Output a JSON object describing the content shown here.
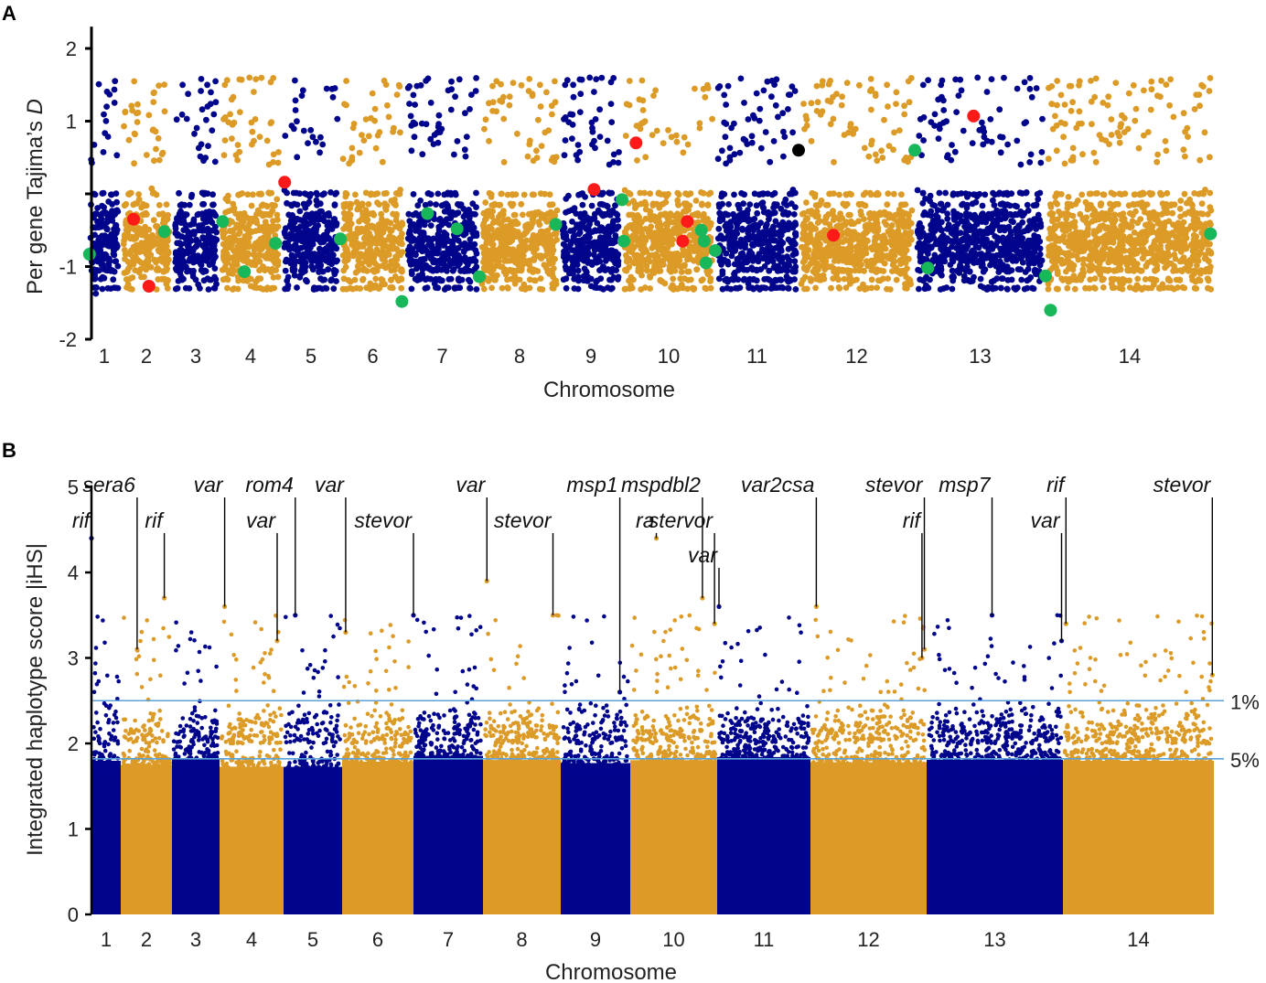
{
  "colors": {
    "navy": "#00058c",
    "gold": "#dc9a27",
    "red": "#ff1a1a",
    "green": "#18b75a",
    "black": "#000000",
    "threshold": "#5ba3dc"
  },
  "chart_data": [
    {
      "panel": "A",
      "type": "scatter",
      "title": "",
      "xlabel": "Chromosome",
      "ylabel_prefix": "Per gene Tajima’s ",
      "ylabel_italic": "D",
      "ylim": [
        -2,
        2.3
      ],
      "yticks": [
        2,
        1,
        0,
        -1,
        -2
      ],
      "ytick_labels": [
        "2",
        "1",
        "",
        "-1",
        "-2"
      ],
      "chromosomes": [
        {
          "label": "1",
          "color": "navy"
        },
        {
          "label": "2",
          "color": "gold"
        },
        {
          "label": "3",
          "color": "navy"
        },
        {
          "label": "4",
          "color": "gold"
        },
        {
          "label": "5",
          "color": "navy"
        },
        {
          "label": "6",
          "color": "gold"
        },
        {
          "label": "7",
          "color": "navy"
        },
        {
          "label": "8",
          "color": "gold"
        },
        {
          "label": "9",
          "color": "navy"
        },
        {
          "label": "10",
          "color": "gold"
        },
        {
          "label": "11",
          "color": "navy"
        },
        {
          "label": "12",
          "color": "gold"
        },
        {
          "label": "13",
          "color": "navy"
        },
        {
          "label": "14",
          "color": "gold"
        }
      ],
      "highlight_points": [
        {
          "chrom": 2,
          "pos": 0.25,
          "value": -0.35,
          "color": "red"
        },
        {
          "chrom": 2,
          "pos": 0.55,
          "value": -1.27,
          "color": "red"
        },
        {
          "chrom": 5,
          "pos": 0.05,
          "value": 0.16,
          "color": "red"
        },
        {
          "chrom": 9,
          "pos": 0.55,
          "value": 0.06,
          "color": "red"
        },
        {
          "chrom": 10,
          "pos": 0.15,
          "value": 0.7,
          "color": "red"
        },
        {
          "chrom": 10,
          "pos": 0.7,
          "value": -0.38,
          "color": "red"
        },
        {
          "chrom": 10,
          "pos": 0.65,
          "value": -0.65,
          "color": "red"
        },
        {
          "chrom": 12,
          "pos": 0.3,
          "value": -0.57,
          "color": "red"
        },
        {
          "chrom": 13,
          "pos": 0.45,
          "value": 1.07,
          "color": "red"
        },
        {
          "chrom": 12,
          "pos": 0.0,
          "value": 0.6,
          "color": "black"
        },
        {
          "chrom": 1,
          "pos": 0.05,
          "value": -0.83,
          "color": "green"
        },
        {
          "chrom": 2,
          "pos": 0.85,
          "value": -0.52,
          "color": "green"
        },
        {
          "chrom": 4,
          "pos": 0.05,
          "value": -0.38,
          "color": "green"
        },
        {
          "chrom": 4,
          "pos": 0.4,
          "value": -1.07,
          "color": "green"
        },
        {
          "chrom": 4,
          "pos": 0.9,
          "value": -0.68,
          "color": "green"
        },
        {
          "chrom": 6,
          "pos": 0.0,
          "value": -0.62,
          "color": "green"
        },
        {
          "chrom": 6,
          "pos": 0.95,
          "value": -1.48,
          "color": "green"
        },
        {
          "chrom": 7,
          "pos": 0.3,
          "value": -0.27,
          "color": "green"
        },
        {
          "chrom": 7,
          "pos": 0.7,
          "value": -0.48,
          "color": "green"
        },
        {
          "chrom": 8,
          "pos": 0.0,
          "value": -1.14,
          "color": "green"
        },
        {
          "chrom": 8,
          "pos": 0.95,
          "value": -0.42,
          "color": "green"
        },
        {
          "chrom": 10,
          "pos": 0.0,
          "value": -0.08,
          "color": "green"
        },
        {
          "chrom": 10,
          "pos": 0.02,
          "value": -0.65,
          "color": "green"
        },
        {
          "chrom": 10,
          "pos": 0.85,
          "value": -0.5,
          "color": "green"
        },
        {
          "chrom": 10,
          "pos": 0.88,
          "value": -0.65,
          "color": "green"
        },
        {
          "chrom": 10,
          "pos": 0.9,
          "value": -0.95,
          "color": "green"
        },
        {
          "chrom": 11,
          "pos": 0.0,
          "value": -0.78,
          "color": "green"
        },
        {
          "chrom": 13,
          "pos": 0.0,
          "value": 0.6,
          "color": "green"
        },
        {
          "chrom": 13,
          "pos": 0.1,
          "value": -1.02,
          "color": "green"
        },
        {
          "chrom": 14,
          "pos": 0.0,
          "value": -1.13,
          "color": "green"
        },
        {
          "chrom": 14,
          "pos": 0.03,
          "value": -1.6,
          "color": "green"
        },
        {
          "chrom": 14,
          "pos": 0.98,
          "value": -0.55,
          "color": "green"
        }
      ]
    },
    {
      "panel": "B",
      "type": "scatter",
      "title": "",
      "xlabel": "Chromosome",
      "ylabel": "Integrated haplotype score |iHS|",
      "ylim": [
        0,
        5
      ],
      "yticks": [
        0,
        1,
        2,
        3,
        4,
        5
      ],
      "ytick_labels": [
        "0",
        "1",
        "2",
        "3",
        "4",
        "5"
      ],
      "thresholds": [
        {
          "label": "1%",
          "value": 2.5
        },
        {
          "label": "5%",
          "value": 1.82
        }
      ],
      "chromosomes": [
        {
          "label": "1",
          "color": "navy"
        },
        {
          "label": "2",
          "color": "gold"
        },
        {
          "label": "3",
          "color": "navy"
        },
        {
          "label": "4",
          "color": "gold"
        },
        {
          "label": "5",
          "color": "navy"
        },
        {
          "label": "6",
          "color": "gold"
        },
        {
          "label": "7",
          "color": "navy"
        },
        {
          "label": "8",
          "color": "gold"
        },
        {
          "label": "9",
          "color": "navy"
        },
        {
          "label": "10",
          "color": "gold"
        },
        {
          "label": "11",
          "color": "navy"
        },
        {
          "label": "12",
          "color": "gold"
        },
        {
          "label": "13",
          "color": "navy"
        },
        {
          "label": "14",
          "color": "gold"
        }
      ],
      "gene_annotations": [
        {
          "label": "rif",
          "chrom": 1,
          "pos": 0.0,
          "peak": 4.4,
          "row": 2
        },
        {
          "label": "sera6",
          "chrom": 2,
          "pos": 0.32,
          "peak": 3.1,
          "row": 1
        },
        {
          "label": "rif",
          "chrom": 2,
          "pos": 0.85,
          "peak": 3.7,
          "row": 2
        },
        {
          "label": "var",
          "chrom": 4,
          "pos": 0.08,
          "peak": 3.6,
          "row": 1
        },
        {
          "label": "var",
          "chrom": 4,
          "pos": 0.9,
          "peak": 3.2,
          "row": 2
        },
        {
          "label": "rom4",
          "chrom": 5,
          "pos": 0.2,
          "peak": 3.5,
          "row": 1
        },
        {
          "label": "var",
          "chrom": 6,
          "pos": 0.05,
          "peak": 3.3,
          "row": 1
        },
        {
          "label": "stevor",
          "chrom": 7,
          "pos": 0.0,
          "peak": 3.5,
          "row": 2
        },
        {
          "label": "var",
          "chrom": 8,
          "pos": 0.05,
          "peak": 3.9,
          "row": 1
        },
        {
          "label": "stevor",
          "chrom": 8,
          "pos": 0.9,
          "peak": 3.5,
          "row": 2
        },
        {
          "label": "msp1",
          "chrom": 9,
          "pos": 0.85,
          "peak": 2.6,
          "row": 1
        },
        {
          "label": "ra",
          "chrom": 10,
          "pos": 0.3,
          "peak": 4.4,
          "row": 2
        },
        {
          "label": "mspdbl2",
          "chrom": 10,
          "pos": 0.83,
          "peak": 3.7,
          "row": 1
        },
        {
          "label": "stervor",
          "chrom": 10,
          "pos": 0.97,
          "peak": 3.4,
          "row": 2
        },
        {
          "label": "var",
          "chrom": 11,
          "pos": 0.02,
          "peak": 3.6,
          "row": 3
        },
        {
          "label": "var2csa",
          "chrom": 12,
          "pos": 0.05,
          "peak": 3.6,
          "row": 1
        },
        {
          "label": "stevor",
          "chrom": 12,
          "pos": 0.98,
          "peak": 3.1,
          "row": 1
        },
        {
          "label": "rif",
          "chrom": 12,
          "pos": 0.96,
          "peak": 3.0,
          "row": 2
        },
        {
          "label": "msp7",
          "chrom": 13,
          "pos": 0.48,
          "peak": 3.5,
          "row": 1
        },
        {
          "label": "var",
          "chrom": 13,
          "pos": 0.99,
          "peak": 3.2,
          "row": 2
        },
        {
          "label": "rif",
          "chrom": 14,
          "pos": 0.02,
          "peak": 3.4,
          "row": 1
        },
        {
          "label": "stevor",
          "chrom": 14,
          "pos": 0.99,
          "peak": 2.8,
          "row": 1
        }
      ]
    }
  ]
}
